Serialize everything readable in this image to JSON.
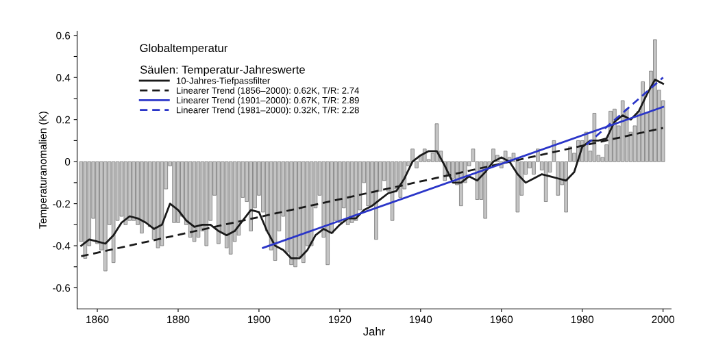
{
  "chart_data": {
    "type": "bar",
    "title": "Globaltemperatur",
    "legend_title": "Säulen: Temperatur-Jahreswerte",
    "xlabel": "Jahr",
    "ylabel": "Temperaturanomalien (K)",
    "x": [
      1856,
      1857,
      1858,
      1859,
      1860,
      1861,
      1862,
      1863,
      1864,
      1865,
      1866,
      1867,
      1868,
      1869,
      1870,
      1871,
      1872,
      1873,
      1874,
      1875,
      1876,
      1877,
      1878,
      1879,
      1880,
      1881,
      1882,
      1883,
      1884,
      1885,
      1886,
      1887,
      1888,
      1889,
      1890,
      1891,
      1892,
      1893,
      1894,
      1895,
      1896,
      1897,
      1898,
      1899,
      1900,
      1901,
      1902,
      1903,
      1904,
      1905,
      1906,
      1907,
      1908,
      1909,
      1910,
      1911,
      1912,
      1913,
      1914,
      1915,
      1916,
      1917,
      1918,
      1919,
      1920,
      1921,
      1922,
      1923,
      1924,
      1925,
      1926,
      1927,
      1928,
      1929,
      1930,
      1931,
      1932,
      1933,
      1934,
      1935,
      1936,
      1937,
      1938,
      1939,
      1940,
      1941,
      1942,
      1943,
      1944,
      1945,
      1946,
      1947,
      1948,
      1949,
      1950,
      1951,
      1952,
      1953,
      1954,
      1955,
      1956,
      1957,
      1958,
      1959,
      1960,
      1961,
      1962,
      1963,
      1964,
      1965,
      1966,
      1967,
      1968,
      1969,
      1970,
      1971,
      1972,
      1973,
      1974,
      1975,
      1976,
      1977,
      1978,
      1979,
      1980,
      1981,
      1982,
      1983,
      1984,
      1985,
      1986,
      1987,
      1988,
      1989,
      1990,
      1991,
      1992,
      1993,
      1994,
      1995,
      1996,
      1997,
      1998,
      1999,
      2000
    ],
    "series": [
      {
        "color": "#c4c4c4",
        "values": [
          -0.38,
          -0.46,
          -0.4,
          -0.27,
          -0.39,
          -0.42,
          -0.52,
          -0.3,
          -0.48,
          -0.28,
          -0.26,
          -0.3,
          -0.28,
          -0.28,
          -0.3,
          -0.34,
          -0.29,
          -0.31,
          -0.37,
          -0.41,
          -0.4,
          -0.13,
          -0.02,
          -0.29,
          -0.29,
          -0.26,
          -0.3,
          -0.36,
          -0.38,
          -0.36,
          -0.33,
          -0.4,
          -0.28,
          -0.16,
          -0.39,
          -0.34,
          -0.41,
          -0.44,
          -0.38,
          -0.35,
          -0.17,
          -0.19,
          -0.33,
          -0.22,
          -0.16,
          -0.24,
          -0.33,
          -0.42,
          -0.47,
          -0.33,
          -0.26,
          -0.43,
          -0.49,
          -0.5,
          -0.45,
          -0.48,
          -0.4,
          -0.4,
          -0.22,
          -0.16,
          -0.36,
          -0.49,
          -0.34,
          -0.28,
          -0.29,
          -0.22,
          -0.3,
          -0.29,
          -0.28,
          -0.23,
          -0.1,
          -0.21,
          -0.21,
          -0.37,
          -0.14,
          -0.09,
          -0.14,
          -0.28,
          -0.13,
          -0.17,
          -0.13,
          -0.02,
          0.06,
          -0.03,
          0.03,
          0.06,
          0.01,
          0.04,
          0.18,
          0.05,
          -0.09,
          -0.07,
          -0.08,
          -0.11,
          -0.21,
          -0.1,
          -0.02,
          0.06,
          -0.18,
          -0.18,
          -0.27,
          -0.03,
          0.06,
          0.03,
          -0.03,
          0.05,
          0.02,
          0.04,
          -0.24,
          -0.16,
          -0.06,
          -0.03,
          -0.06,
          0.06,
          -0.04,
          -0.19,
          -0.05,
          0.1,
          -0.16,
          -0.11,
          -0.24,
          0.07,
          0.04,
          0.1,
          0.1,
          0.14,
          0.05,
          0.23,
          0.03,
          0.02,
          0.08,
          0.24,
          0.25,
          0.17,
          0.29,
          0.25,
          0.14,
          0.17,
          0.24,
          0.38,
          0.23,
          0.43,
          0.58,
          0.34,
          0.29
        ]
      },
      {
        "type": "line",
        "name": "10-Jahres-Tiefpassfilter",
        "color": "#1a1a1a",
        "line_style": "solid",
        "x": [
          1856,
          1858,
          1860,
          1862,
          1864,
          1866,
          1868,
          1870,
          1872,
          1874,
          1876,
          1878,
          1880,
          1882,
          1884,
          1886,
          1888,
          1890,
          1892,
          1894,
          1896,
          1898,
          1900,
          1902,
          1904,
          1906,
          1908,
          1910,
          1912,
          1914,
          1916,
          1918,
          1920,
          1922,
          1924,
          1926,
          1928,
          1930,
          1932,
          1934,
          1936,
          1938,
          1940,
          1942,
          1944,
          1946,
          1948,
          1950,
          1952,
          1954,
          1956,
          1958,
          1960,
          1962,
          1964,
          1966,
          1968,
          1970,
          1972,
          1974,
          1976,
          1978,
          1980,
          1982,
          1984,
          1986,
          1988,
          1990,
          1992,
          1994,
          1996,
          1998,
          2000
        ],
        "values": [
          -0.4,
          -0.37,
          -0.38,
          -0.39,
          -0.35,
          -0.29,
          -0.26,
          -0.27,
          -0.29,
          -0.32,
          -0.3,
          -0.2,
          -0.23,
          -0.28,
          -0.31,
          -0.3,
          -0.3,
          -0.33,
          -0.35,
          -0.33,
          -0.28,
          -0.23,
          -0.24,
          -0.33,
          -0.4,
          -0.42,
          -0.46,
          -0.46,
          -0.42,
          -0.35,
          -0.32,
          -0.34,
          -0.3,
          -0.27,
          -0.27,
          -0.23,
          -0.21,
          -0.18,
          -0.15,
          -0.14,
          -0.08,
          0.0,
          0.03,
          0.05,
          0.05,
          -0.02,
          -0.1,
          -0.1,
          -0.07,
          -0.09,
          -0.05,
          0.0,
          0.02,
          0.0,
          -0.06,
          -0.1,
          -0.08,
          -0.06,
          -0.07,
          -0.08,
          -0.09,
          -0.05,
          0.07,
          0.1,
          0.1,
          0.11,
          0.19,
          0.22,
          0.2,
          0.24,
          0.32,
          0.39,
          0.37
        ]
      },
      {
        "type": "line",
        "name": "Linearer Trend (1856–2000): 0.62K, T/R: 2.74",
        "color": "#1a1a1a",
        "line_style": "dashed",
        "x": [
          1856,
          2000
        ],
        "values": [
          -0.45,
          0.16
        ]
      },
      {
        "type": "line",
        "name": "Linearer Trend (1901–2000): 0.67K, T/R: 2.89",
        "color": "#2a35c8",
        "line_style": "solid",
        "x": [
          1901,
          2000
        ],
        "values": [
          -0.41,
          0.26
        ]
      },
      {
        "type": "line",
        "name": "Linearer Trend (1981–2000): 0.32K, T/R: 2.28",
        "color": "#2a35c8",
        "line_style": "dashed",
        "x": [
          1981,
          2000
        ],
        "values": [
          0.08,
          0.4
        ]
      }
    ],
    "xlim": [
      1855,
      2002
    ],
    "xticks": [
      1860,
      1880,
      1900,
      1920,
      1940,
      1960,
      1980,
      2000
    ],
    "ylim": [
      -0.7,
      0.62
    ],
    "yticks": [
      -0.6,
      {
        "value": -0.5,
        "label": null
      },
      -0.4,
      {
        "value": -0.3,
        "label": null
      },
      -0.2,
      {
        "value": -0.1,
        "label": null
      },
      0,
      {
        "value": 0.1,
        "label": null
      },
      0.2,
      {
        "value": 0.3,
        "label": null
      },
      0.4,
      {
        "value": 0.5,
        "label": null
      },
      0.6
    ],
    "grid": false,
    "legend": "top left"
  }
}
